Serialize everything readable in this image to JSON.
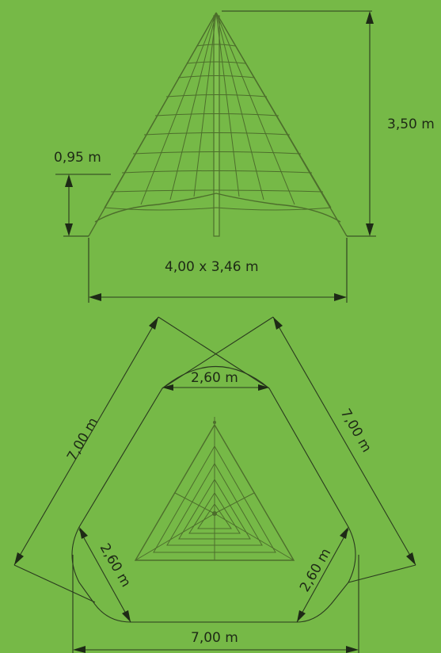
{
  "dimensions": {
    "height": "3,50 m",
    "net_height": "0,95 m",
    "base": "4,00 x 3,46 m",
    "safety_side_left": "7,00 m",
    "safety_side_right": "7,00 m",
    "safety_side_bottom": "7,00 m",
    "arc_top": "2,60 m",
    "arc_left": "2,60 m",
    "arc_right": "2,60 m"
  },
  "colors": {
    "background": "#76b947",
    "net": "#4d6e2c",
    "line": "#2a3a1e"
  }
}
